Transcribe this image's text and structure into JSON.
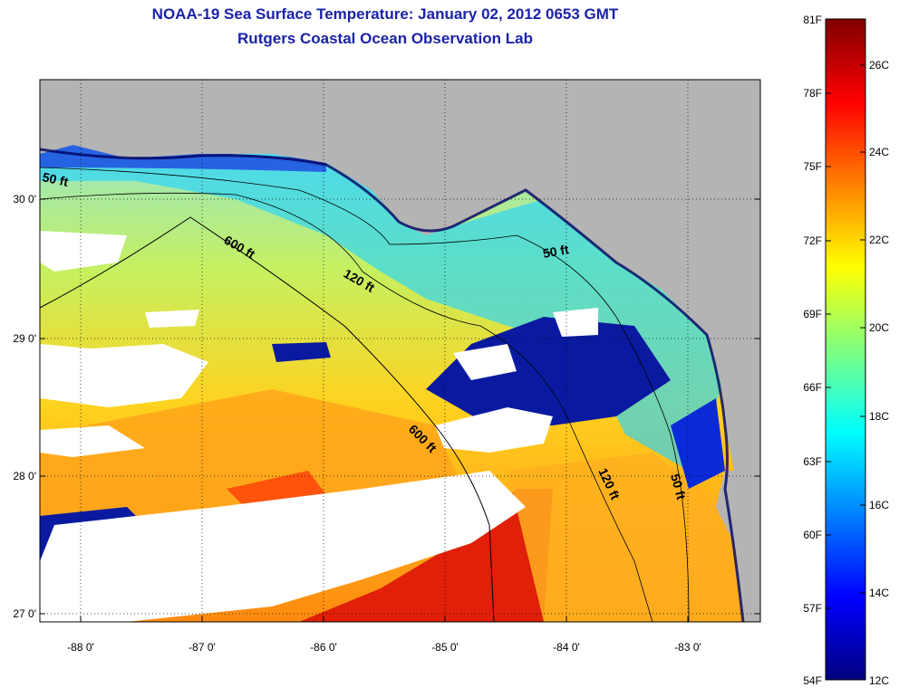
{
  "title": "NOAA-19 Sea Surface Temperature:  January 02, 2012 0653 GMT",
  "subtitle": "Rutgers Coastal Ocean Observation Lab",
  "map": {
    "lat_labels": [
      "30 0'",
      "29 0'",
      "28 0'",
      "27 0'"
    ],
    "lon_labels": [
      "-88 0'",
      "-87 0'",
      "-86 0'",
      "-85 0'",
      "-84 0'",
      "-83 0'"
    ],
    "contour_labels": [
      "50 ft",
      "600 ft",
      "120 ft",
      "50 ft",
      "600 ft",
      "120 ft",
      "50 ft"
    ]
  },
  "colorbar": {
    "fahrenheit": [
      "81F",
      "78F",
      "75F",
      "72F",
      "69F",
      "66F",
      "63F",
      "60F",
      "57F",
      "54F"
    ],
    "celsius": [
      "26C",
      "24C",
      "22C",
      "20C",
      "18C",
      "16C",
      "14C",
      "12C"
    ],
    "colors": [
      "#800000",
      "#ff0000",
      "#ff8000",
      "#ffff00",
      "#80ff80",
      "#00ffff",
      "#0080ff",
      "#0000ff",
      "#000080"
    ]
  },
  "colors": {
    "land": "#b4b4b4",
    "cloud": "#ffffff",
    "title": "#1a23a8"
  }
}
